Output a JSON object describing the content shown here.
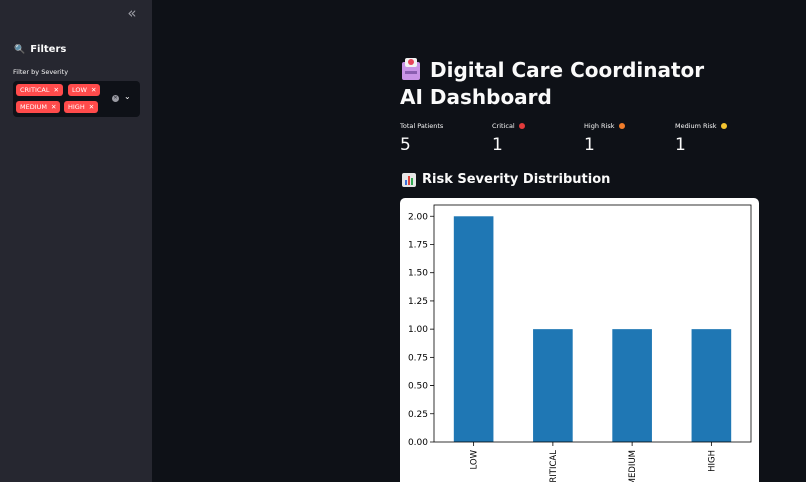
{
  "sidebar": {
    "collapse_icon": "double-chevron-left-icon",
    "title": "Filters",
    "title_icon": "search-icon",
    "filter_label": "Filter by Severity",
    "selected_tags": [
      "CRITICAL",
      "LOW",
      "MEDIUM",
      "HIGH"
    ],
    "tag_color": "#ff4b4b"
  },
  "main": {
    "title": "Digital Care Coordinator AI Dashboard",
    "title_icon": "hospital-icon",
    "metrics": [
      {
        "label": "Total Patients",
        "value": "5",
        "dot_color": ""
      },
      {
        "label": "Critical",
        "value": "1",
        "dot_color": "#e23b3b"
      },
      {
        "label": "High Risk",
        "value": "1",
        "dot_color": "#f07c2a"
      },
      {
        "label": "Medium Risk",
        "value": "1",
        "dot_color": "#f4c430"
      }
    ],
    "section_title": "Risk Severity Distribution",
    "section_icon": "bar-chart-icon"
  },
  "chart_data": {
    "type": "bar",
    "title": "",
    "xlabel": "",
    "ylabel": "",
    "categories": [
      "LOW",
      "CRITICAL",
      "MEDIUM",
      "HIGH"
    ],
    "values": [
      2,
      1,
      1,
      1
    ],
    "ylim": [
      0,
      2.1
    ],
    "yticks": [
      "0.00",
      "0.25",
      "0.50",
      "0.75",
      "1.00",
      "1.25",
      "1.50",
      "1.75",
      "2.00"
    ],
    "bar_color": "#1f77b4",
    "grid": false
  }
}
